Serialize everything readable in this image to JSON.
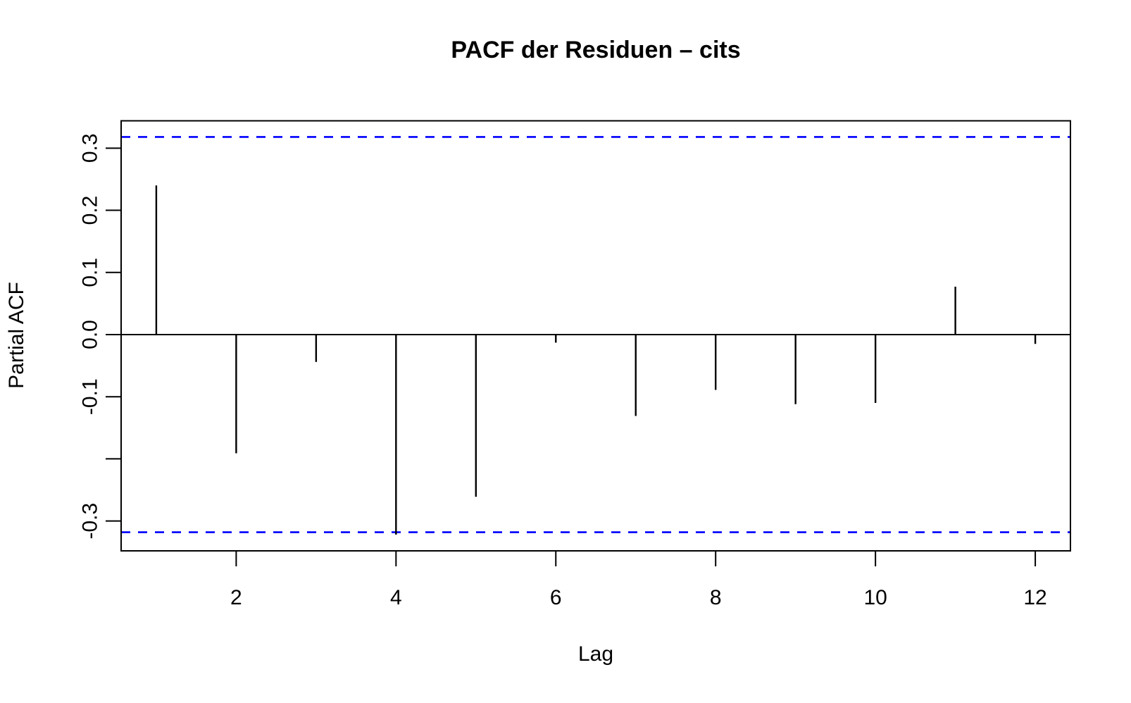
{
  "chart_data": {
    "type": "stem",
    "title": "PACF der Residuen – cits",
    "xlabel": "Lag",
    "ylabel": "Partial ACF",
    "x": [
      1,
      2,
      3,
      4,
      5,
      6,
      7,
      8,
      9,
      10,
      11,
      12
    ],
    "values": [
      0.24,
      -0.191,
      -0.044,
      -0.322,
      -0.261,
      -0.013,
      -0.131,
      -0.089,
      -0.112,
      -0.11,
      0.077,
      -0.015
    ],
    "conf_lines": [
      0.318,
      -0.318
    ],
    "conf_style": "dashed",
    "xlim": [
      0.56,
      12.44
    ],
    "ylim": [
      -0.348,
      0.344
    ],
    "x_ticks": [
      2,
      4,
      6,
      8,
      10,
      12
    ],
    "x_tick_labels": [
      "2",
      "4",
      "6",
      "8",
      "10",
      "12"
    ],
    "y_ticks": [
      0.3,
      0.2,
      0.1,
      0.0,
      -0.1,
      -0.2,
      -0.3
    ],
    "y_tick_labels": [
      "0.3",
      "0.2",
      "0.1",
      "0.0",
      "-0.1",
      "",
      "-0.3"
    ],
    "grid": false,
    "legend": null,
    "colors": {
      "spike": "#000000",
      "axis": "#000000",
      "confidence": "#0000ff",
      "background": "#ffffff",
      "text": "#000000"
    }
  }
}
